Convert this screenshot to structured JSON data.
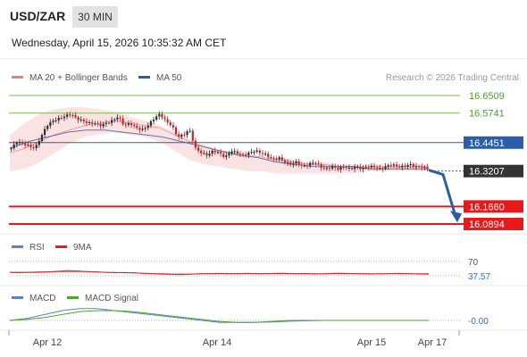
{
  "header": {
    "pair": "USD/ZAR",
    "timeframe": "30 MIN",
    "datetime": "Wednesday, April 15, 2026 10:35:32 AM CET"
  },
  "legend": {
    "ma20_label": "MA 20 + Bollinger Bands",
    "ma50_label": "MA 50",
    "ma20_color": "#f07a7a",
    "ma50_color": "#2a5ea8",
    "credit": "Research © 2026 Trading Central"
  },
  "rsi_legend": {
    "rsi_label": "RSI",
    "ma_label": "9MA",
    "rsi_color": "#5b7fd8",
    "ma_color": "#e02020"
  },
  "macd_legend": {
    "macd_label": "MACD",
    "signal_label": "MACD Signal",
    "macd_color": "#5b7fd8",
    "signal_color": "#4fa528"
  },
  "chart_data": [
    {
      "type": "candlestick",
      "title": "USD/ZAR 30 MIN",
      "x_ticks": [
        "Apr 12",
        "Apr 14",
        "Apr 15",
        "Apr 17"
      ],
      "price_levels": [
        {
          "value": 16.6509,
          "label": "16.6509",
          "kind": "resistance",
          "color": "#7dbb55"
        },
        {
          "value": 16.5741,
          "label": "16.5741",
          "kind": "resistance",
          "color": "#7dbb55"
        },
        {
          "value": 16.4451,
          "label": "16.4451",
          "kind": "pivot",
          "color": "#2a5ea8"
        },
        {
          "value": 16.3207,
          "label": "16.3207",
          "kind": "last",
          "color": "#333333"
        },
        {
          "value": 16.166,
          "label": "16.1660",
          "kind": "support",
          "color": "#e8191b"
        },
        {
          "value": 16.0894,
          "label": "16.0894",
          "kind": "support",
          "color": "#e8191b"
        }
      ],
      "close_path": [
        16.42,
        16.45,
        16.44,
        16.43,
        16.42,
        16.47,
        16.52,
        16.54,
        16.55,
        16.56,
        16.57,
        16.55,
        16.54,
        16.53,
        16.53,
        16.52,
        16.53,
        16.54,
        16.56,
        16.52,
        16.53,
        16.51,
        16.5,
        16.52,
        16.55,
        16.57,
        16.54,
        16.52,
        16.47,
        16.48,
        16.5,
        16.42,
        16.4,
        16.39,
        16.41,
        16.4,
        16.38,
        16.41,
        16.4,
        16.39,
        16.4,
        16.41,
        16.4,
        16.39,
        16.37,
        16.38,
        16.36,
        16.35,
        16.36,
        16.34,
        16.35,
        16.36,
        16.34,
        16.33,
        16.34,
        16.33,
        16.34,
        16.33,
        16.34,
        16.33,
        16.34,
        16.34,
        16.33,
        16.34,
        16.35,
        16.34,
        16.34,
        16.35,
        16.34,
        16.34,
        16.33
      ],
      "ma20": [
        16.4,
        16.42,
        16.45,
        16.48,
        16.5,
        16.52,
        16.53,
        16.54,
        16.53,
        16.52,
        16.51,
        16.48,
        16.45,
        16.43,
        16.41,
        16.4,
        16.39,
        16.38,
        16.37,
        16.36,
        16.35,
        16.35,
        16.34,
        16.34,
        16.34,
        16.34,
        16.34,
        16.34,
        16.34
      ],
      "bb_upper": [
        16.48,
        16.53,
        16.57,
        16.59,
        16.6,
        16.6,
        16.59,
        16.58,
        16.56,
        16.54,
        16.52,
        16.49,
        16.46,
        16.43,
        16.41,
        16.4,
        16.39,
        16.38,
        16.38,
        16.37,
        16.36,
        16.36,
        16.35,
        16.35,
        16.35,
        16.35,
        16.35,
        16.35,
        16.35
      ],
      "bb_lower": [
        16.32,
        16.33,
        16.36,
        16.4,
        16.44,
        16.47,
        16.48,
        16.49,
        16.48,
        16.47,
        16.45,
        16.41,
        16.37,
        16.35,
        16.34,
        16.33,
        16.32,
        16.32,
        16.31,
        16.31,
        16.31,
        16.31,
        16.31,
        16.31,
        16.32,
        16.32,
        16.32,
        16.32,
        16.32
      ],
      "ma50": [
        16.42,
        16.45,
        16.47,
        16.49,
        16.5,
        16.5,
        16.49,
        16.48,
        16.47,
        16.45,
        16.43,
        16.41,
        16.39,
        16.38,
        16.36,
        16.35,
        16.34,
        16.34,
        16.34,
        16.33,
        16.33,
        16.33,
        16.33
      ],
      "forecast_to": 16.1
    },
    {
      "type": "line",
      "title": "RSI",
      "levels": [
        {
          "value": 70,
          "label": "70"
        },
        {
          "value": 37.57,
          "label": "37.57"
        }
      ],
      "series": [
        {
          "name": "RSI",
          "values": [
            46,
            45,
            47,
            46,
            48,
            52,
            55,
            54,
            50,
            49,
            47,
            45,
            46,
            44,
            42,
            40,
            38,
            37,
            36,
            38,
            40,
            41,
            42,
            40,
            41,
            42,
            40,
            41,
            43,
            42,
            40,
            41,
            39,
            40,
            42,
            43,
            41,
            40,
            39,
            40,
            41,
            42,
            40,
            39,
            38
          ]
        },
        {
          "name": "9MA",
          "values": [
            47,
            47,
            47,
            48,
            49,
            50,
            51,
            51,
            50,
            49,
            47,
            46,
            45,
            44,
            42,
            41,
            40,
            39,
            39,
            39,
            40,
            40,
            41,
            41,
            41,
            41,
            41,
            41,
            41,
            41,
            41,
            41,
            40,
            40,
            41,
            41,
            41,
            41,
            40,
            40,
            40,
            40,
            40,
            40,
            40
          ]
        }
      ]
    },
    {
      "type": "line",
      "title": "MACD",
      "levels": [
        {
          "value": 0.0,
          "label": "-0.00"
        }
      ],
      "series": [
        {
          "name": "MACD",
          "values": [
            0.0,
            0.01,
            0.03,
            0.05,
            0.06,
            0.06,
            0.05,
            0.04,
            0.03,
            0.02,
            0.01,
            0.0,
            -0.01,
            -0.01,
            -0.01,
            -0.005,
            0.0,
            0.0,
            0.0,
            0.0,
            0.0,
            0.0,
            0.0,
            0.0,
            0.0
          ]
        },
        {
          "name": "MACD Signal",
          "values": [
            0.0,
            0.005,
            0.015,
            0.03,
            0.045,
            0.05,
            0.05,
            0.045,
            0.035,
            0.025,
            0.015,
            0.005,
            -0.005,
            -0.01,
            -0.01,
            -0.008,
            -0.004,
            -0.002,
            0.0,
            0.0,
            0.0,
            0.0,
            0.0,
            0.0,
            0.0
          ]
        }
      ]
    }
  ]
}
